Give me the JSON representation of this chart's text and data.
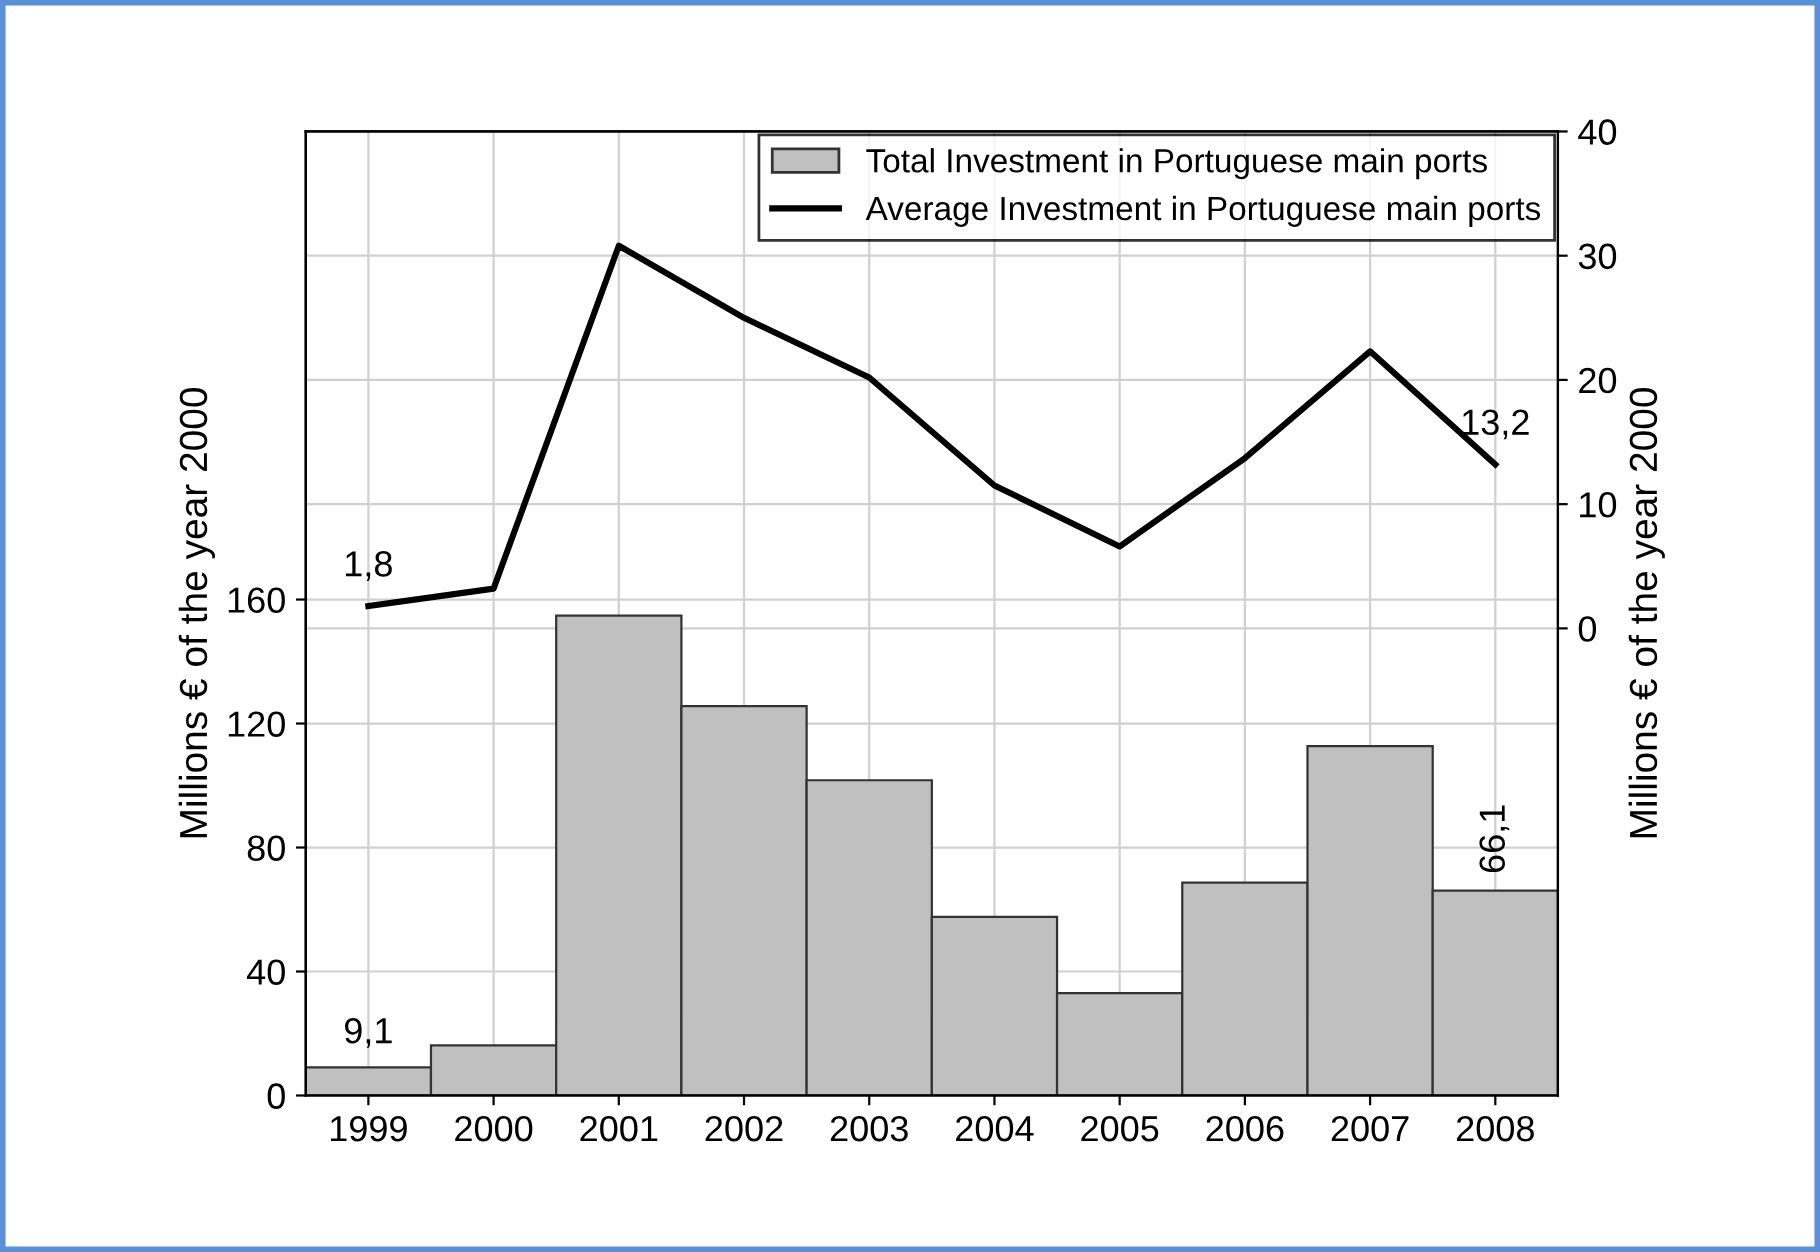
{
  "chart_data": {
    "type": "bar",
    "categories": [
      "1999",
      "2000",
      "2001",
      "2002",
      "2003",
      "2004",
      "2005",
      "2006",
      "2007",
      "2008"
    ],
    "series": [
      {
        "name": "Total Investment in Portuguese main ports",
        "color": "#c0c0c0",
        "values": [
          9.1,
          16.2,
          154.8,
          125.6,
          101.7,
          57.6,
          33,
          68.7,
          112.7,
          66.1
        ],
        "value_labels": [
          "9,1",
          null,
          null,
          null,
          null,
          null,
          null,
          null,
          null,
          "66,1"
        ]
      },
      {
        "name": "Average Investment in Portuguese main ports",
        "type": "line",
        "axis": "y2",
        "color": "#000000",
        "values": [
          1.8,
          3.2,
          30.8,
          25,
          20.2,
          11.5,
          6.6,
          13.7,
          22.3,
          13.2
        ],
        "value_labels": [
          "1,8",
          null,
          null,
          null,
          null,
          null,
          null,
          null,
          null,
          "13,2"
        ]
      }
    ],
    "ylabel": "Millions € of the year 2000",
    "y2label": "Millions € of the year 2000",
    "ylim": [
      0,
      311
    ],
    "yticks": [
      0,
      40,
      80,
      120,
      160
    ],
    "y2lim": [
      -37.6,
      40
    ],
    "y2ticks": [
      0,
      10,
      20,
      30,
      40
    ],
    "grid": true,
    "legend": "top right",
    "marker": "none",
    "line_style": "solid"
  }
}
